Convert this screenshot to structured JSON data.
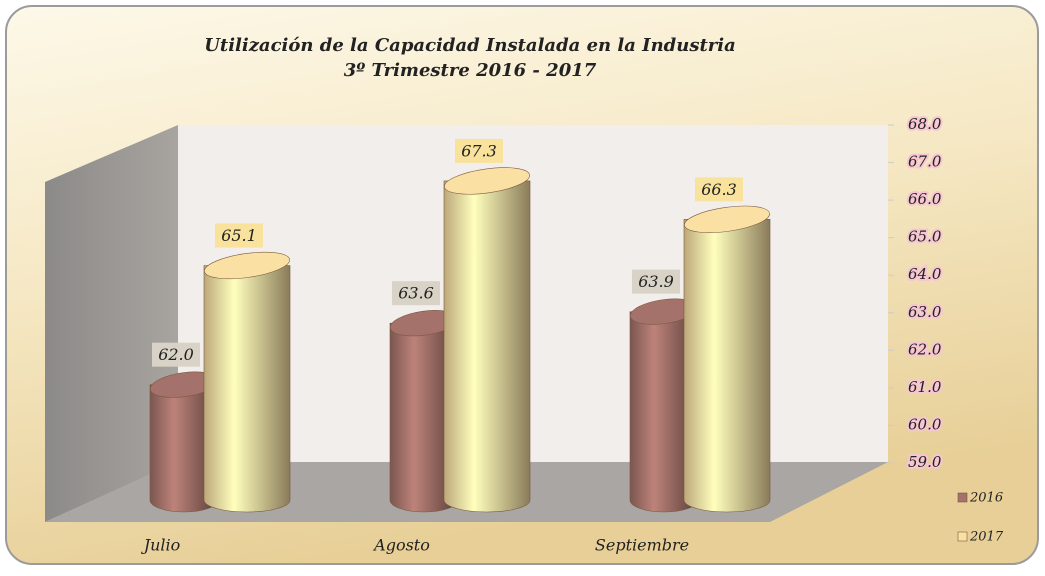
{
  "chart_data": {
    "type": "cylinder",
    "title": "Utilización de la Capacidad Instalada en la Industria",
    "subtitle": "3º Trimestre 2016 - 2017",
    "categories": [
      "Julio",
      "Agosto",
      "Septiembre"
    ],
    "series": [
      {
        "name": "2016",
        "color": "#a4726a",
        "values": [
          62.0,
          63.6,
          63.9
        ],
        "value_labels": [
          "62.0",
          "63.6",
          "63.9"
        ]
      },
      {
        "name": "2017",
        "color": "#fbe0a4",
        "values": [
          65.1,
          67.3,
          66.3
        ],
        "value_labels": [
          "65.1",
          "67.3",
          "66.3"
        ]
      }
    ],
    "ylim": [
      59,
      68
    ],
    "yticks": [
      {
        "value": 59,
        "label": "59.0"
      },
      {
        "value": 60,
        "label": "60.0"
      },
      {
        "value": 61,
        "label": "61.0"
      },
      {
        "value": 62,
        "label": "62.0"
      },
      {
        "value": 63,
        "label": "63.0"
      },
      {
        "value": 64,
        "label": "64.0"
      },
      {
        "value": 65,
        "label": "65.0"
      },
      {
        "value": 66,
        "label": "66.0"
      },
      {
        "value": 67,
        "label": "67.0"
      },
      {
        "value": 68,
        "label": "68.0"
      }
    ],
    "legend": "right"
  }
}
